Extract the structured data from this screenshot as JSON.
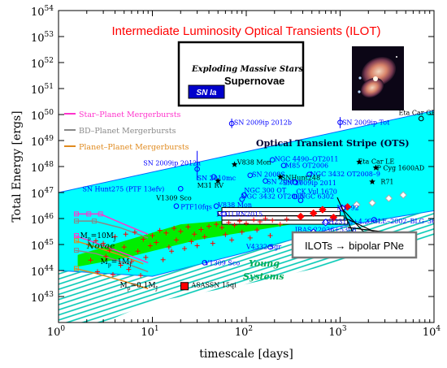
{
  "chart_data": {
    "type": "scatter",
    "title": "Intermediate Luminosity Optical Transients (ILOT)",
    "xlabel": "timescale [days]",
    "ylabel": "Total Energy [ergs]",
    "x_scale": "log",
    "y_scale": "log",
    "xlim": [
      1,
      10000
    ],
    "ylim": [
      1e+42,
      1e+54
    ],
    "x_ticks": [
      {
        "value": 1,
        "base": "10",
        "exp": "0"
      },
      {
        "value": 10,
        "base": "10",
        "exp": "1"
      },
      {
        "value": 100,
        "base": "10",
        "exp": "2"
      },
      {
        "value": 1000,
        "base": "10",
        "exp": "3"
      },
      {
        "value": 10000,
        "base": "10",
        "exp": "4"
      }
    ],
    "y_ticks": [
      {
        "value": 1e+43,
        "base": "10",
        "exp": "43"
      },
      {
        "value": 1e+44,
        "base": "10",
        "exp": "44"
      },
      {
        "value": 1e+45,
        "base": "10",
        "exp": "45"
      },
      {
        "value": 1e+46,
        "base": "10",
        "exp": "46"
      },
      {
        "value": 1e+47,
        "base": "10",
        "exp": "47"
      },
      {
        "value": 1e+48,
        "base": "10",
        "exp": "48"
      },
      {
        "value": 1e+49,
        "base": "10",
        "exp": "49"
      },
      {
        "value": 1e+50,
        "base": "10",
        "exp": "50"
      },
      {
        "value": 1e+51,
        "base": "10",
        "exp": "51"
      },
      {
        "value": 1e+52,
        "base": "10",
        "exp": "52"
      },
      {
        "value": 1e+53,
        "base": "10",
        "exp": "53"
      },
      {
        "value": 1e+54,
        "base": "10",
        "exp": "54"
      }
    ],
    "supernova_box": {
      "line1": "Exploding Massive Stars",
      "line2": "Supernovae",
      "badge": "SN Ia"
    },
    "legend": {
      "placement": "left",
      "entries": [
        {
          "label": "Star–Planet Mergerbursts",
          "color": "#ff33cc"
        },
        {
          "label": "BD–Planet Mergerbursts",
          "color": "#888888"
        },
        {
          "label": "Planet–Planet Mergerbursts",
          "color": "#e08a1e"
        }
      ]
    },
    "ots_label": "Optical Transient Stripe (OTS)",
    "ilot_label": "ILOTs → bipolar PNe",
    "novae_label": "Novae",
    "young_systems_label": [
      "Young",
      "Systems"
    ],
    "mass_labels": [
      {
        "base": "M",
        "sub": "p",
        "eq": "=10M",
        "tail": "J",
        "x": 1.7,
        "y": 1.8e+45
      },
      {
        "base": "M",
        "sub": "p",
        "eq": "=1M",
        "tail": "J",
        "x": 2.8,
        "y": 1.8e+44
      },
      {
        "base": "M",
        "sub": "p",
        "eq": "=0.1M",
        "tail": "J",
        "x": 4.5,
        "y": 2.2e+43
      }
    ],
    "colors": {
      "ots_band": "#00ffff",
      "ots_edge": "#0066ff",
      "hatch": "#00c8b4",
      "novae_band": "#00ee00",
      "title": "#ff0000",
      "young_systems": "#00aa55",
      "sn_points": "#0000ff",
      "crosses": "#ff0000",
      "dark_label": "#000033"
    },
    "labeled_points": [
      {
        "label": "SN 2009ip 2012b",
        "x": 70,
        "y": 4.5e+49,
        "color": "#0000ff",
        "symbol": "circle",
        "err": [
          3e+49,
          7e+49
        ],
        "lx": 74,
        "ly": 5e+49
      },
      {
        "label": "SN 2009ip Tot",
        "x": 1000,
        "y": 5e+49,
        "color": "#0000ff",
        "symbol": "circle",
        "err": [
          3e+49,
          8e+49
        ],
        "lx": 1050,
        "ly": 5e+49
      },
      {
        "label": "Eta Car GE",
        "x": 7300,
        "y": 7e+49,
        "color": "#000000",
        "symbol": "circle",
        "lx": 4200,
        "ly": 1.2e+50
      },
      {
        "label": "SN 2009ip 2012a",
        "x": 30,
        "y": 8e+47,
        "color": "#0000ff",
        "symbol": "circle",
        "err": [
          3e+47,
          4e+48
        ],
        "lx": 8,
        "ly": 1.4e+48
      },
      {
        "label": "V838 Mon",
        "x": 75,
        "y": 1.2e+48,
        "color": "#000000",
        "symbol": "star",
        "lx": 80,
        "ly": 1.5e+48
      },
      {
        "label": "NGC 4490–OT2011",
        "x": 190,
        "y": 1.8e+48,
        "color": "#0000ff",
        "symbol": "circle",
        "lx": 200,
        "ly": 2e+48
      },
      {
        "label": "M85 OT2006",
        "x": 250,
        "y": 1.1e+48,
        "color": "#0000ff",
        "symbol": "circle",
        "lx": 260,
        "ly": 1.1e+48
      },
      {
        "label": "SN 2010mc",
        "x": 45,
        "y": 4e+47,
        "color": "#0000ff",
        "symbol": "circle",
        "lx": 30,
        "ly": 3.7e+47
      },
      {
        "label": "SN 2008S",
        "x": 110,
        "y": 4.6e+47,
        "color": "#0000ff",
        "symbol": "circle",
        "lx": 115,
        "ly": 5e+47
      },
      {
        "label": "NGC 3432 OT2008–9",
        "x": 470,
        "y": 5e+47,
        "color": "#0000ff",
        "symbol": "circle",
        "lx": 480,
        "ly": 5.2e+47
      },
      {
        "label": "M31 RV",
        "x": 50,
        "y": 2.8e+47,
        "color": "#000000",
        "symbol": "star",
        "lx": 30,
        "ly": 1.9e+47
      },
      {
        "label": "SN 2007sv",
        "x": 160,
        "y": 2.8e+47,
        "color": "#0000ff",
        "symbol": "circle",
        "lx": 165,
        "ly": 2.6e+47
      },
      {
        "label": "SNHunt248",
        "x": 230,
        "y": 4e+47,
        "color": "#000000",
        "symbol": "star",
        "lx": 235,
        "ly": 3.8e+47
      },
      {
        "label": "SN 2009ip 2011",
        "x": 330,
        "y": 2.5e+47,
        "color": "#0000ff",
        "symbol": "circle",
        "lx": 245,
        "ly": 2.4e+47
      },
      {
        "label": "Eta Car LE",
        "x": 1600,
        "y": 1.5e+48,
        "color": "#000000",
        "symbol": "star",
        "lx": 1550,
        "ly": 1.6e+48
      },
      {
        "label": "P Cyg 1600AD",
        "x": 2400,
        "y": 9e+47,
        "color": "#000000",
        "symbol": "star",
        "lx": 2450,
        "ly": 9e+47
      },
      {
        "label": "R71",
        "x": 2200,
        "y": 2.6e+47,
        "color": "#000000",
        "symbol": "star",
        "lx": 2700,
        "ly": 2.6e+47
      },
      {
        "label": "SN Hunt275 (PTF 13efv)",
        "x": 20,
        "y": 1.4e+47,
        "color": "#0000ff",
        "symbol": "circle",
        "lx": 1.8,
        "ly": 1.4e+47
      },
      {
        "label": "NGC 300 OT",
        "x": 95,
        "y": 8e+46,
        "color": "#0000ff",
        "symbol": "circle",
        "lx": 95,
        "ly": 1.25e+47
      },
      {
        "label": "CK Vul 1670",
        "x": 330,
        "y": 7e+46,
        "color": "#0000ff",
        "symbol": "circle",
        "lx": 340,
        "ly": 1.1e+47
      },
      {
        "label": "NGC 3432 OT2000",
        "x": 90,
        "y": 5.5e+46,
        "color": "#0000ff",
        "symbol": "circle",
        "lx": 88,
        "ly": 7.2e+46
      },
      {
        "label": "NGC 6302",
        "x": 380,
        "y": 5e+46,
        "color": "#0000ff",
        "symbol": "circle",
        "lx": 370,
        "ly": 7.2e+46
      },
      {
        "label": "V1309 Sco",
        "x": 40,
        "y": 6e+46,
        "color": "#000000",
        "symbol": "none",
        "lx": 11,
        "ly": 6.2e+46
      },
      {
        "label": "PTF10fqs",
        "x": 18,
        "y": 3e+46,
        "color": "#0000ff",
        "symbol": "circle",
        "lx": 20,
        "ly": 2.8e+46
      },
      {
        "label": "V838 Mon",
        "x": 48,
        "y": 3e+46,
        "color": "#0000ff",
        "symbol": "circle",
        "lx": 50,
        "ly": 3.4e+46
      },
      {
        "label": "M31LRN2015",
        "x": 58,
        "y": 1.5e+46,
        "color": "#0000ff",
        "symbol": "circle",
        "lx": 48,
        "ly": 1.5e+46
      },
      {
        "label": "M1–92",
        "x": 1050,
        "y": 2.5e+46,
        "color": "#0000ff",
        "symbol": "diamond",
        "lx": 920,
        "ly": 2.6e+46
      },
      {
        "label": "OGLE–2002–BLG–360",
        "x": 2300,
        "y": 9e+45,
        "color": "#0000ff",
        "symbol": "circle",
        "lx": 1950,
        "ly": 8e+45
      },
      {
        "label": "OH231.8+4.2",
        "x": 700,
        "y": 7e+45,
        "color": "#0000ff",
        "symbol": "diamond",
        "lx": 660,
        "ly": 7.8e+45
      },
      {
        "label": "IRAS 22036+5306",
        "x": 520,
        "y": 3e+45,
        "color": "#0000ff",
        "symbol": "diamond",
        "lx": 330,
        "ly": 3.8e+45
      },
      {
        "label": "V4332 Sgr",
        "x": 180,
        "y": 8e+44,
        "color": "#0000ff",
        "symbol": "circle",
        "lx": 100,
        "ly": 8.5e+44
      },
      {
        "label": "V1309 Sco",
        "x": 36,
        "y": 2e+44,
        "color": "#0000ff",
        "symbol": "circle",
        "lx": 36,
        "ly": 2e+44
      },
      {
        "label": "ASASSN 15qi",
        "x": 22,
        "y": 2.5e+43,
        "color": "#000000",
        "symbol": "square",
        "lx": 26,
        "ly": 2.8e+43
      }
    ],
    "diamonds": [
      {
        "x": 380,
        "y": 1.2e+46,
        "color": "#ff0000"
      },
      {
        "x": 520,
        "y": 1.6e+46,
        "color": "#ff0000"
      },
      {
        "x": 650,
        "y": 2.2e+46,
        "color": "#ff0000"
      },
      {
        "x": 850,
        "y": 1.1e+46,
        "color": "#ff0000"
      },
      {
        "x": 1200,
        "y": 2.8e+46,
        "color": "#ff0000"
      },
      {
        "x": 1500,
        "y": 3.4e+46,
        "color": "#aaaaaa"
      },
      {
        "x": 2200,
        "y": 4e+46,
        "color": "#aaaaaa"
      },
      {
        "x": 3300,
        "y": 6e+46,
        "color": "#aaaaaa"
      },
      {
        "x": 4700,
        "y": 8e+46,
        "color": "#aaaaaa"
      }
    ],
    "crosses": [
      [
        2.1,
        1e+45
      ],
      [
        2.5,
        1.4e+45
      ],
      [
        3.0,
        1.1e+45
      ],
      [
        4.0,
        2e+45
      ],
      [
        5.2,
        2.5e+45
      ],
      [
        6.5,
        3e+45
      ],
      [
        8.0,
        1.6e+45
      ],
      [
        10,
        2.2e+45
      ],
      [
        12,
        3.5e+45
      ],
      [
        14,
        2.8e+45
      ],
      [
        17,
        4.2e+45
      ],
      [
        20,
        3.2e+45
      ],
      [
        24,
        4.8e+45
      ],
      [
        28,
        2.5e+45
      ],
      [
        33,
        3.8e+45
      ],
      [
        40,
        5e+45
      ],
      [
        48,
        6e+45
      ],
      [
        55,
        4.5e+45
      ],
      [
        65,
        7e+45
      ],
      [
        75,
        5.5e+45
      ],
      [
        85,
        8e+45
      ],
      [
        100,
        6.5e+45
      ],
      [
        120,
        9e+45
      ],
      [
        140,
        7.5e+45
      ],
      [
        160,
        1e+46
      ],
      [
        190,
        8.5e+45
      ],
      [
        230,
        6e+45
      ],
      [
        270,
        9.5e+45
      ],
      [
        3.5,
        6e+44
      ],
      [
        5.0,
        8e+44
      ],
      [
        7.0,
        5.5e+44
      ],
      [
        9.5,
        9e+44
      ],
      [
        11,
        1.2e+45
      ],
      [
        15,
        8e+44
      ],
      [
        18,
        1.5e+45
      ],
      [
        26,
        1.3e+45
      ],
      [
        36,
        2e+45
      ],
      [
        60,
        2.4e+45
      ],
      [
        90,
        3e+45
      ],
      [
        130,
        3.6e+45
      ],
      [
        2.2,
        2.5e+44
      ],
      [
        3.2,
        3.5e+44
      ],
      [
        4.6,
        1.6e+44
      ],
      [
        6.0,
        2.2e+44
      ],
      [
        8.5,
        3.2e+44
      ],
      [
        13,
        2.6e+44
      ],
      [
        2.6,
        9e+43
      ],
      [
        3.8,
        7e+43
      ],
      [
        5.6,
        1.1e+44
      ],
      [
        7.5,
        6.5e+43
      ],
      [
        16,
        5.5e+44
      ],
      [
        22,
        7e+44
      ],
      [
        30,
        9e+44
      ],
      [
        44,
        1.1e+45
      ],
      [
        70,
        1.5e+45
      ],
      [
        110,
        1.8e+45
      ],
      [
        180,
        2.2e+45
      ]
    ],
    "mass_tracks": [
      {
        "color": "#ff33cc",
        "points": [
          [
            1.5,
            1.5e+46
          ],
          [
            2.0,
            1.5e+46
          ],
          [
            2.8,
            1.5e+46
          ],
          [
            5.0,
            6e+45
          ],
          [
            9.0,
            2.5e+45
          ]
        ]
      },
      {
        "color": "#ff33cc",
        "points": [
          [
            1.5,
            2.2e+45
          ],
          [
            2.6,
            1.1e+45
          ],
          [
            5.5,
            4e+44
          ],
          [
            9.0,
            2e+44
          ]
        ]
      },
      {
        "color": "#888888",
        "points": [
          [
            1.5,
            8e+45
          ],
          [
            2.4,
            8e+45
          ],
          [
            4.5,
            4.5e+45
          ],
          [
            9.0,
            1.8e+45
          ]
        ]
      },
      {
        "color": "#888888",
        "points": [
          [
            1.5,
            6e+44
          ],
          [
            2.5,
            4.5e+44
          ],
          [
            5.0,
            2e+44
          ],
          [
            9.0,
            9e+43
          ]
        ]
      },
      {
        "color": "#e08a1e",
        "points": [
          [
            1.5,
            1.4e+45
          ],
          [
            2.5,
            8e+44
          ],
          [
            4.5,
            4e+44
          ],
          [
            8.0,
            1.8e+44
          ]
        ]
      },
      {
        "color": "#e08a1e",
        "points": [
          [
            1.5,
            1.2e+44
          ],
          [
            2.6,
            7.5e+43
          ],
          [
            4.8,
            4e+43
          ],
          [
            9.0,
            2e+43
          ]
        ]
      }
    ],
    "mass_track_markers": [
      {
        "x": 1.55,
        "y": 1.5e+46,
        "color": "#ff33cc"
      },
      {
        "x": 2.1,
        "y": 1.5e+46,
        "color": "#ff33cc"
      },
      {
        "x": 2.8,
        "y": 1.5e+46,
        "color": "#ff33cc"
      },
      {
        "x": 1.55,
        "y": 8e+45,
        "color": "#888888"
      },
      {
        "x": 2.4,
        "y": 8e+45,
        "color": "#888888"
      },
      {
        "x": 1.55,
        "y": 2.2e+45,
        "color": "#ff33cc"
      },
      {
        "x": 1.55,
        "y": 1.4e+45,
        "color": "#e08a1e"
      },
      {
        "x": 1.55,
        "y": 6e+44,
        "color": "#888888"
      },
      {
        "x": 1.55,
        "y": 1.2e+44,
        "color": "#e08a1e"
      }
    ]
  }
}
